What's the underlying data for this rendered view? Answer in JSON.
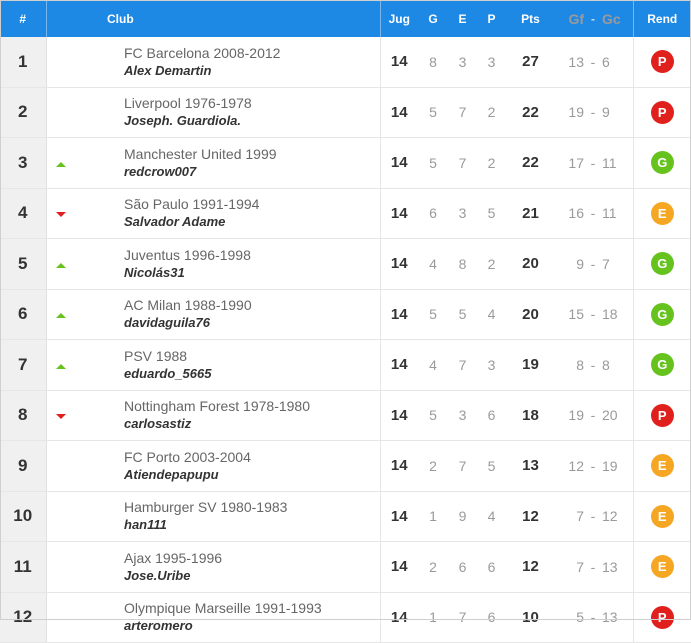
{
  "header": {
    "pos": "#",
    "club": "Club",
    "jug": "Jug",
    "g": "G",
    "e": "E",
    "p": "P",
    "pts": "Pts",
    "gf": "Gf",
    "sep": "-",
    "gc": "Gc",
    "rend": "Rend"
  },
  "colors": {
    "header_bg": "#1e88e5",
    "up": "#66c21d",
    "down": "#e0201c",
    "badge_P": "#e0201c",
    "badge_G": "#66c21d",
    "badge_E": "#f5a623"
  },
  "rows": [
    {
      "pos": "1",
      "trend": "none",
      "club": "FC Barcelona 2008-2012",
      "manager": "Alex Demartin",
      "jug": "14",
      "g": "8",
      "e": "3",
      "p": "3",
      "pts": "27",
      "gf": "13",
      "sep": "-",
      "gc": "6",
      "rend": "P"
    },
    {
      "pos": "2",
      "trend": "none",
      "club": "Liverpool 1976-1978",
      "manager": "Joseph. Guardiola.",
      "jug": "14",
      "g": "5",
      "e": "7",
      "p": "2",
      "pts": "22",
      "gf": "19",
      "sep": "-",
      "gc": "9",
      "rend": "P"
    },
    {
      "pos": "3",
      "trend": "up",
      "club": "Manchester United 1999",
      "manager": "redcrow007",
      "jug": "14",
      "g": "5",
      "e": "7",
      "p": "2",
      "pts": "22",
      "gf": "17",
      "sep": "-",
      "gc": "11",
      "rend": "G"
    },
    {
      "pos": "4",
      "trend": "down",
      "club": "São Paulo 1991-1994",
      "manager": "Salvador Adame",
      "jug": "14",
      "g": "6",
      "e": "3",
      "p": "5",
      "pts": "21",
      "gf": "16",
      "sep": "-",
      "gc": "11",
      "rend": "E"
    },
    {
      "pos": "5",
      "trend": "up",
      "club": "Juventus 1996-1998",
      "manager": "Nicolás31",
      "jug": "14",
      "g": "4",
      "e": "8",
      "p": "2",
      "pts": "20",
      "gf": "9",
      "sep": "-",
      "gc": "7",
      "rend": "G"
    },
    {
      "pos": "6",
      "trend": "up",
      "club": "AC Milan 1988-1990",
      "manager": "davidaguila76",
      "jug": "14",
      "g": "5",
      "e": "5",
      "p": "4",
      "pts": "20",
      "gf": "15",
      "sep": "-",
      "gc": "18",
      "rend": "G"
    },
    {
      "pos": "7",
      "trend": "up",
      "club": "PSV 1988",
      "manager": "eduardo_5665",
      "jug": "14",
      "g": "4",
      "e": "7",
      "p": "3",
      "pts": "19",
      "gf": "8",
      "sep": "-",
      "gc": "8",
      "rend": "G"
    },
    {
      "pos": "8",
      "trend": "down",
      "club": "Nottingham Forest 1978-1980",
      "manager": "carlosastiz",
      "jug": "14",
      "g": "5",
      "e": "3",
      "p": "6",
      "pts": "18",
      "gf": "19",
      "sep": "-",
      "gc": "20",
      "rend": "P"
    },
    {
      "pos": "9",
      "trend": "none",
      "club": "FC Porto 2003-2004",
      "manager": "Atiendepapupu",
      "jug": "14",
      "g": "2",
      "e": "7",
      "p": "5",
      "pts": "13",
      "gf": "12",
      "sep": "-",
      "gc": "19",
      "rend": "E"
    },
    {
      "pos": "10",
      "trend": "none",
      "club": "Hamburger SV 1980-1983",
      "manager": "han111",
      "jug": "14",
      "g": "1",
      "e": "9",
      "p": "4",
      "pts": "12",
      "gf": "7",
      "sep": "-",
      "gc": "12",
      "rend": "E"
    },
    {
      "pos": "11",
      "trend": "none",
      "club": "Ajax 1995-1996",
      "manager": "Jose.Uribe",
      "jug": "14",
      "g": "2",
      "e": "6",
      "p": "6",
      "pts": "12",
      "gf": "7",
      "sep": "-",
      "gc": "13",
      "rend": "E"
    },
    {
      "pos": "12",
      "trend": "none",
      "club": "Olympique Marseille 1991-1993",
      "manager": "arteromero",
      "jug": "14",
      "g": "1",
      "e": "7",
      "p": "6",
      "pts": "10",
      "gf": "5",
      "sep": "-",
      "gc": "13",
      "rend": "P"
    }
  ]
}
